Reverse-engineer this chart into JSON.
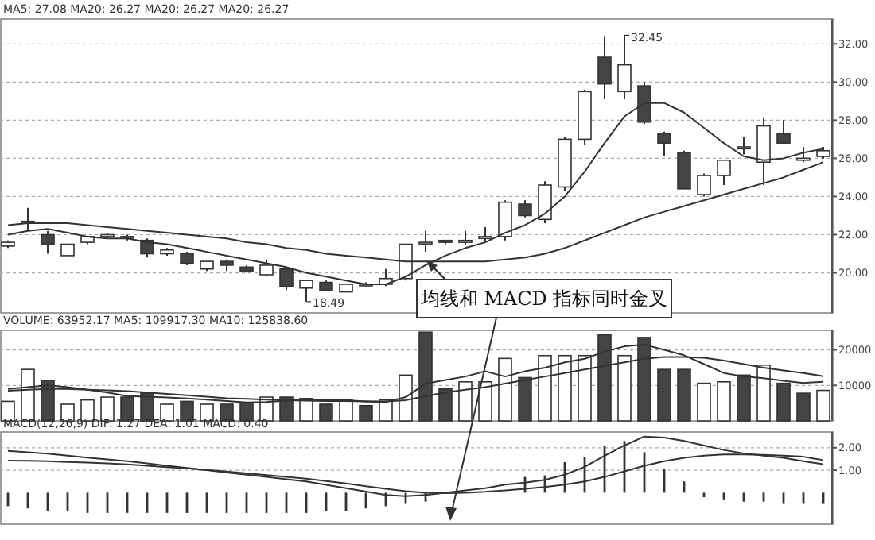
{
  "chart_data": [
    {
      "type": "candlestick",
      "title": "MA5: 27.08  MA20: 26.27  MA20: 26.27  MA20: 26.27",
      "categories": [
        null,
        null,
        null,
        null,
        null,
        null,
        null,
        null,
        null,
        null,
        null,
        null,
        null,
        null,
        null,
        null,
        null,
        null,
        null,
        null,
        null,
        null,
        null,
        null,
        null,
        null,
        null,
        null,
        null,
        null,
        null,
        null,
        null,
        null,
        null,
        null,
        null,
        null,
        null,
        null,
        null,
        null
      ],
      "ohlc": [
        [
          21.4,
          21.7,
          21.3,
          21.6
        ],
        [
          22.6,
          23.4,
          22.2,
          22.7
        ],
        [
          22.0,
          22.2,
          21.0,
          21.5
        ],
        [
          20.9,
          21.5,
          20.9,
          21.5
        ],
        [
          21.6,
          21.9,
          21.5,
          21.9
        ],
        [
          21.9,
          22.1,
          21.8,
          22.0
        ],
        [
          21.9,
          22.0,
          21.7,
          21.9
        ],
        [
          21.7,
          21.8,
          20.8,
          21.0
        ],
        [
          21.0,
          21.3,
          20.9,
          21.2
        ],
        [
          21.0,
          21.1,
          20.4,
          20.5
        ],
        [
          20.2,
          20.6,
          20.1,
          20.6
        ],
        [
          20.6,
          20.7,
          20.1,
          20.4
        ],
        [
          20.3,
          20.4,
          20.0,
          20.1
        ],
        [
          19.9,
          20.7,
          19.8,
          20.4
        ],
        [
          20.2,
          20.3,
          19.1,
          19.3
        ],
        [
          19.2,
          19.6,
          18.49,
          19.6
        ],
        [
          19.5,
          19.6,
          19.1,
          19.1
        ],
        [
          19.0,
          19.4,
          19.0,
          19.4
        ],
        [
          19.4,
          19.5,
          19.3,
          19.4
        ],
        [
          19.4,
          20.2,
          19.3,
          19.7
        ],
        [
          19.7,
          21.5,
          19.6,
          21.5
        ],
        [
          21.6,
          22.2,
          21.1,
          21.6
        ],
        [
          21.7,
          21.7,
          21.5,
          21.6
        ],
        [
          21.6,
          22.2,
          21.5,
          21.7
        ],
        [
          21.8,
          22.4,
          21.6,
          21.9
        ],
        [
          21.9,
          23.8,
          21.7,
          23.7
        ],
        [
          23.6,
          23.8,
          22.9,
          23.0
        ],
        [
          22.8,
          24.8,
          22.6,
          24.6
        ],
        [
          24.5,
          27.1,
          24.3,
          27.0
        ],
        [
          27.0,
          29.6,
          26.7,
          29.5
        ],
        [
          31.3,
          32.4,
          29.1,
          29.9
        ],
        [
          29.5,
          32.45,
          29.1,
          30.9
        ],
        [
          29.8,
          30.0,
          27.8,
          27.9
        ],
        [
          27.3,
          27.4,
          26.1,
          26.8
        ],
        [
          26.3,
          26.4,
          24.4,
          24.4
        ],
        [
          24.1,
          25.2,
          24.0,
          25.1
        ],
        [
          25.1,
          25.9,
          24.6,
          25.9
        ],
        [
          26.5,
          27.1,
          26.2,
          26.6
        ],
        [
          25.8,
          28.1,
          24.6,
          27.7
        ],
        [
          27.3,
          28.0,
          26.8,
          26.8
        ],
        [
          25.9,
          26.6,
          25.8,
          26.0
        ],
        [
          26.1,
          26.6,
          26.0,
          26.4
        ]
      ],
      "series": [
        {
          "type": "line",
          "color": "#333333",
          "values": [
            22.0,
            22.2,
            22.3,
            22.1,
            21.9,
            21.8,
            21.8,
            21.6,
            21.5,
            21.3,
            21.1,
            20.9,
            20.7,
            20.5,
            20.3,
            20.0,
            19.8,
            19.6,
            19.4,
            19.4,
            19.8,
            20.4,
            20.9,
            21.3,
            21.6,
            22.1,
            22.5,
            23.1,
            24.0,
            25.3,
            26.8,
            28.2,
            28.9,
            28.9,
            28.4,
            27.6,
            26.8,
            26.1,
            25.9,
            26.0,
            26.3,
            26.5
          ]
        },
        {
          "type": "line",
          "color": "#333333",
          "values": [
            22.5,
            22.6,
            22.6,
            22.6,
            22.5,
            22.4,
            22.3,
            22.2,
            22.1,
            22.0,
            21.9,
            21.8,
            21.6,
            21.5,
            21.3,
            21.2,
            21.0,
            20.9,
            20.8,
            20.7,
            20.6,
            20.6,
            20.6,
            20.6,
            20.6,
            20.7,
            20.8,
            21.0,
            21.3,
            21.7,
            22.1,
            22.5,
            22.9,
            23.2,
            23.5,
            23.8,
            24.1,
            24.4,
            24.7,
            25.0,
            25.4,
            25.8
          ]
        }
      ],
      "ylim": [
        17.9,
        33.3
      ],
      "yticks": [
        {
          "value": 20,
          "label": "20.00"
        },
        {
          "value": 22,
          "label": "22.00"
        },
        {
          "value": 24,
          "label": "24.00"
        },
        {
          "value": 26,
          "label": "26.00"
        },
        {
          "value": 28,
          "label": "28.00"
        },
        {
          "value": 30,
          "label": "30.00"
        },
        {
          "value": 32,
          "label": "32.00"
        }
      ],
      "tick_labels": "y",
      "grid": "y",
      "annotations": [
        "32.45",
        "18.49",
        "均线和 MACD 指标同时金叉"
      ]
    },
    {
      "type": "bar",
      "title": "VOLUME: 63952.17  MA5: 109917.30  MA10: 125838.60",
      "categories": [
        null,
        null,
        null,
        null,
        null,
        null,
        null,
        null,
        null,
        null,
        null,
        null,
        null,
        null,
        null,
        null,
        null,
        null,
        null,
        null,
        null,
        null,
        null,
        null,
        null,
        null,
        null,
        null,
        null,
        null,
        null,
        null,
        null,
        null,
        null,
        null,
        null,
        null,
        null,
        null,
        null,
        null
      ],
      "series": [
        {
          "type": "bar",
          "values": [
            5500,
            14500,
            11400,
            4700,
            5900,
            6700,
            6700,
            7800,
            4700,
            5500,
            4700,
            4700,
            5100,
            6700,
            6700,
            6300,
            4700,
            5900,
            4300,
            5900,
            12900,
            25000,
            9000,
            11000,
            11000,
            17600,
            12200,
            18400,
            18400,
            18400,
            24300,
            18400,
            23500,
            14500,
            14500,
            10600,
            11000,
            12900,
            15700,
            10600,
            7800,
            8600
          ],
          "colors": [
            "#ffffff",
            "#ffffff",
            "#444444",
            "#ffffff",
            "#ffffff",
            "#ffffff",
            "#444444",
            "#444444",
            "#ffffff",
            "#444444",
            "#ffffff",
            "#444444",
            "#444444",
            "#ffffff",
            "#444444",
            "#ffffff",
            "#444444",
            "#ffffff",
            "#444444",
            "#ffffff",
            "#ffffff",
            "#444444",
            "#444444",
            "#ffffff",
            "#ffffff",
            "#ffffff",
            "#444444",
            "#ffffff",
            "#ffffff",
            "#ffffff",
            "#444444",
            "#ffffff",
            "#444444",
            "#444444",
            "#444444",
            "#ffffff",
            "#ffffff",
            "#444444",
            "#ffffff",
            "#444444",
            "#444444",
            "#ffffff"
          ]
        },
        {
          "type": "line",
          "color": "#333333",
          "values": [
            9000,
            9500,
            10000,
            9500,
            8800,
            8000,
            7000,
            6800,
            6600,
            6300,
            6000,
            5600,
            5200,
            5300,
            5700,
            6000,
            6000,
            5800,
            5500,
            5300,
            6700,
            10500,
            11500,
            12500,
            14000,
            12500,
            14000,
            15000,
            16500,
            17500,
            19500,
            21000,
            21500,
            20000,
            18500,
            16000,
            13500,
            12500,
            12000,
            11300,
            10700,
            11000
          ]
        },
        {
          "type": "line",
          "color": "#333333",
          "values": [
            8500,
            8800,
            9000,
            9000,
            8800,
            8600,
            8400,
            8000,
            7600,
            7200,
            6800,
            6400,
            6200,
            6000,
            5800,
            5700,
            5600,
            5600,
            5500,
            5500,
            5800,
            7000,
            8000,
            8800,
            9500,
            10500,
            11500,
            12500,
            13500,
            14500,
            15500,
            16500,
            17500,
            18000,
            18000,
            17800,
            17000,
            16000,
            15000,
            14200,
            13500,
            12600
          ]
        }
      ],
      "ylim": [
        0,
        25500
      ],
      "yticks": [
        10000,
        20000
      ],
      "tick_labels": "y",
      "grid": "y"
    },
    {
      "type": "bar",
      "title": "MACD(12,26,9)  DIF: 1.27  DEA: 1.01  MACD: 0.40",
      "categories": [
        null,
        null,
        null,
        null,
        null,
        null,
        null,
        null,
        null,
        null,
        null,
        null,
        null,
        null,
        null,
        null,
        null,
        null,
        null,
        null,
        null,
        null,
        null,
        null,
        null,
        null,
        null,
        null,
        null,
        null,
        null,
        null,
        null,
        null,
        null,
        null,
        null,
        null,
        null,
        null,
        null,
        null
      ],
      "series": [
        {
          "type": "bar",
          "color": "#333333",
          "values": [
            -0.6,
            -0.7,
            -0.8,
            -0.8,
            -0.9,
            -0.9,
            -0.9,
            -0.9,
            -0.9,
            -0.9,
            -0.9,
            -0.9,
            -0.9,
            -0.9,
            -0.9,
            -0.9,
            -0.8,
            -0.8,
            -0.7,
            -0.6,
            -0.5,
            -0.4,
            null,
            null,
            null,
            null,
            0.7,
            0.77,
            1.36,
            1.6,
            2.07,
            2.3,
            1.8,
            1.07,
            0.5,
            -0.2,
            -0.3,
            -0.4,
            -0.4,
            -0.5,
            -0.5,
            -0.5
          ]
        },
        {
          "type": "line",
          "color": "#333333",
          "values": [
            1.86,
            1.8,
            1.74,
            1.65,
            1.56,
            1.48,
            1.4,
            1.3,
            1.2,
            1.1,
            1.0,
            0.9,
            0.8,
            0.7,
            0.6,
            0.5,
            0.35,
            0.2,
            0.05,
            -0.1,
            -0.15,
            -0.1,
            0.0,
            0.1,
            0.2,
            0.36,
            0.45,
            0.57,
            0.8,
            1.15,
            1.64,
            2.1,
            2.5,
            2.45,
            2.3,
            2.1,
            1.9,
            1.75,
            1.65,
            1.55,
            1.4,
            1.27
          ]
        },
        {
          "type": "line",
          "color": "#333333",
          "values": [
            1.43,
            1.42,
            1.4,
            1.37,
            1.34,
            1.3,
            1.26,
            1.2,
            1.14,
            1.08,
            1.01,
            0.94,
            0.86,
            0.78,
            0.7,
            0.62,
            0.52,
            0.41,
            0.29,
            0.17,
            0.07,
            0.0,
            -0.02,
            0.0,
            0.04,
            0.1,
            0.17,
            0.25,
            0.36,
            0.5,
            0.7,
            0.95,
            1.2,
            1.4,
            1.55,
            1.65,
            1.7,
            1.7,
            1.68,
            1.65,
            1.6,
            1.45
          ]
        }
      ],
      "ylim": [
        -1.4,
        2.7
      ],
      "yticks": [
        {
          "value": 1,
          "label": "1.00"
        },
        {
          "value": 2,
          "label": "2.00"
        }
      ],
      "tick_labels": "y",
      "grid": "y"
    }
  ]
}
